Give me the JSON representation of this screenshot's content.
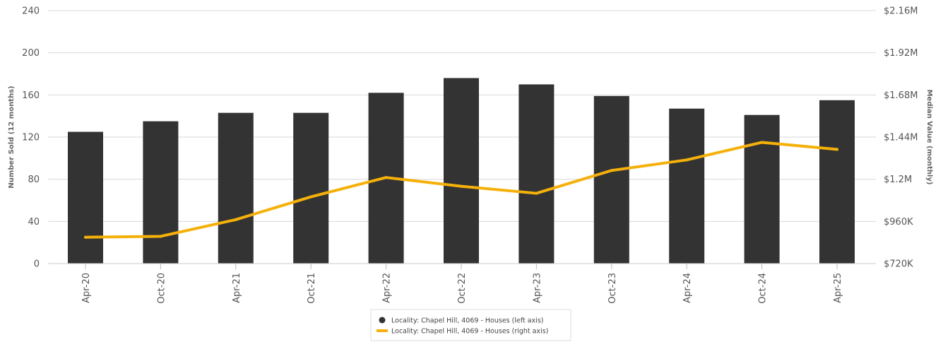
{
  "chart_data": {
    "type": "bar",
    "categories": [
      "Apr-20",
      "Oct-20",
      "Apr-21",
      "Oct-21",
      "Apr-22",
      "Oct-22",
      "Apr-23",
      "Oct-23",
      "Apr-24",
      "Oct-24",
      "Apr-25"
    ],
    "series": [
      {
        "name": "Locality: Chapel Hill, 4069 - Houses (left axis)",
        "type": "bar",
        "axis": "left",
        "color": "#333333",
        "values": [
          125,
          135,
          143,
          143,
          162,
          176,
          170,
          159,
          147,
          141,
          155
        ]
      },
      {
        "name": "Locality: Chapel Hill, 4069 - Houses (right axis)",
        "type": "line",
        "axis": "right",
        "color": "#f5b10a",
        "values": [
          870000,
          875000,
          970000,
          1100000,
          1210000,
          1160000,
          1120000,
          1250000,
          1310000,
          1410000,
          1370000
        ]
      }
    ],
    "left_axis": {
      "label": "Number Sold (12 months)",
      "ylim": [
        0,
        240
      ],
      "ticks": [
        0,
        40,
        80,
        120,
        160,
        200,
        240
      ],
      "tick_labels": [
        "0",
        "40",
        "80",
        "120",
        "160",
        "200",
        "240"
      ]
    },
    "right_axis": {
      "label": "Median Value (monthly)",
      "ylim": [
        720000,
        2160000
      ],
      "ticks": [
        720000,
        960000,
        1200000,
        1440000,
        1680000,
        1920000,
        2160000
      ],
      "tick_labels": [
        "$720K",
        "$960K",
        "$1.2M",
        "$1.44M",
        "$1.68M",
        "$1.92M",
        "$2.16M"
      ]
    },
    "grid": true,
    "legend": "bottom"
  }
}
